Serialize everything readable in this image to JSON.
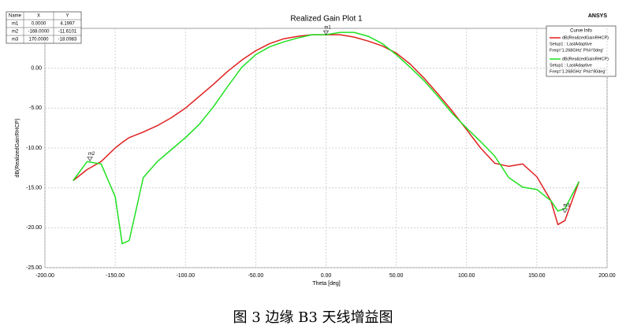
{
  "chart_data": {
    "type": "line",
    "title": "Realized Gain Plot 1",
    "brand": "ANSYS",
    "x_label": "Theta [deg]",
    "y_label": "dB(RealizedGainRHCP)",
    "x": [
      -180,
      -170,
      -160,
      -150,
      -145,
      -140,
      -130,
      -120,
      -110,
      -100,
      -90,
      -80,
      -70,
      -60,
      -50,
      -40,
      -30,
      -20,
      -10,
      0,
      10,
      20,
      30,
      40,
      50,
      60,
      70,
      80,
      90,
      100,
      110,
      120,
      130,
      140,
      150,
      160,
      165,
      170,
      180
    ],
    "series": [
      {
        "name": "dB(RealizedGainRHCP)",
        "setup": "Setup1 : LastAdaptive",
        "info": "Freq='1.268GHz' Phi='0deg'",
        "color": "#e02020",
        "values": [
          -14.1,
          -12.7,
          -11.7,
          -10.0,
          -9.3,
          -8.7,
          -8.0,
          -7.2,
          -6.2,
          -5.0,
          -3.5,
          -2.0,
          -0.4,
          1.0,
          2.2,
          3.1,
          3.7,
          4.0,
          4.2,
          4.2,
          4.2,
          3.9,
          3.4,
          2.8,
          1.9,
          0.5,
          -1.3,
          -3.3,
          -5.4,
          -7.7,
          -10.0,
          -11.9,
          -12.3,
          -12.0,
          -13.6,
          -16.6,
          -19.6,
          -19.1,
          -14.2
        ]
      },
      {
        "name": "dB(RealizedGainRHCP)",
        "setup": "Setup1 : LastAdaptive",
        "info": "Freq='1.268GHz' Phi='90deg'",
        "color": "#20e020",
        "values": [
          -14.1,
          -11.7,
          -12.0,
          -16.1,
          -22.0,
          -21.6,
          -13.7,
          -11.7,
          -10.2,
          -8.7,
          -7.0,
          -4.8,
          -2.3,
          0.1,
          1.7,
          2.7,
          3.3,
          3.8,
          4.2,
          4.2,
          4.5,
          4.5,
          4.0,
          3.1,
          1.7,
          0.1,
          -1.6,
          -3.6,
          -5.7,
          -7.5,
          -9.2,
          -11.0,
          -13.7,
          -14.9,
          -15.2,
          -16.6,
          -17.9,
          -17.6,
          -14.2
        ]
      }
    ],
    "legend_title": "Curve Info",
    "xlim": [
      -200,
      200
    ],
    "xticks": [
      {
        "value": -200,
        "label": "-200.00"
      },
      {
        "value": -150,
        "label": "-150.00"
      },
      {
        "value": -100,
        "label": "-100.00"
      },
      {
        "value": -50,
        "label": "-50.00"
      },
      {
        "value": 0,
        "label": "0.00"
      },
      {
        "value": 50,
        "label": "50.00"
      },
      {
        "value": 100,
        "label": "100.00"
      },
      {
        "value": 150,
        "label": "150.00"
      },
      {
        "value": 200,
        "label": "200.00"
      }
    ],
    "ylim": [
      -25,
      5
    ],
    "yticks": [
      {
        "value": 0,
        "label": "0.00"
      },
      {
        "value": -5,
        "label": "-5.00"
      },
      {
        "value": -10,
        "label": "-10.00"
      },
      {
        "value": -15,
        "label": "-15.00"
      },
      {
        "value": -20,
        "label": "-20.00"
      },
      {
        "value": -25,
        "label": "-25.00"
      }
    ],
    "grid": true,
    "marker_header": [
      "Name",
      "X",
      "Y"
    ],
    "markers": [
      {
        "name": "m1",
        "x": {
          "value": 0,
          "label": "0.0000"
        },
        "y": {
          "value": 4.1997,
          "label": "4.1997"
        }
      },
      {
        "name": "m2",
        "x": {
          "value": -168,
          "label": "-168.0000"
        },
        "y": {
          "value": -11.6101,
          "label": "-11.6101"
        }
      },
      {
        "name": "m3",
        "x": {
          "value": 170,
          "label": "170.0000"
        },
        "y": {
          "value": -18.0983,
          "label": "-18.0983"
        }
      }
    ]
  },
  "caption": "图 3 边缘 B3 天线增益图"
}
